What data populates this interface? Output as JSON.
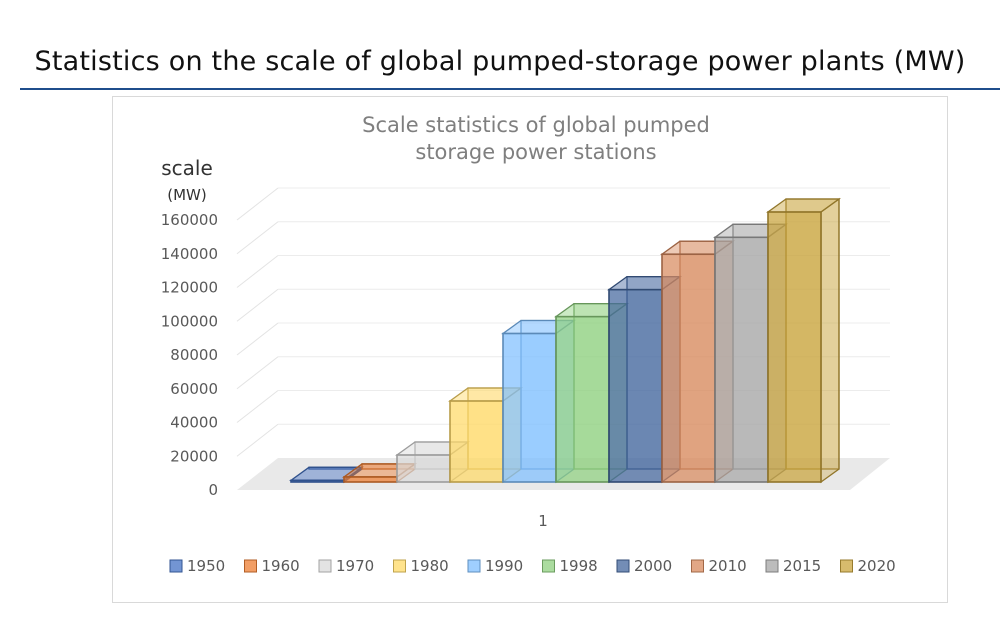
{
  "header": {
    "title": "Statistics on the scale of global pumped-storage power plants (MW)"
  },
  "chart_data": {
    "type": "bar",
    "title": "Scale statistics of global pumped storage power stations",
    "title_lines": [
      "Scale statistics of global pumped",
      "storage power stations"
    ],
    "ylabel": "scale",
    "yunit": "(MW)",
    "categories": [
      "1"
    ],
    "ylim": [
      0,
      160000
    ],
    "yticks": [
      0,
      20000,
      40000,
      60000,
      80000,
      100000,
      120000,
      140000,
      160000
    ],
    "grid": true,
    "legend_position": "bottom",
    "series": [
      {
        "name": "1950",
        "values": [
          1000
        ],
        "color": "#4472c4"
      },
      {
        "name": "1960",
        "values": [
          3000
        ],
        "color": "#ed7d31"
      },
      {
        "name": "1970",
        "values": [
          16000
        ],
        "color": "#d9d9d9"
      },
      {
        "name": "1980",
        "values": [
          48000
        ],
        "color": "#ffd966"
      },
      {
        "name": "1990",
        "values": [
          88000
        ],
        "color": "#7fbfff"
      },
      {
        "name": "1998",
        "values": [
          98000
        ],
        "color": "#8fd07f"
      },
      {
        "name": "2000",
        "values": [
          114000
        ],
        "color": "#44679e"
      },
      {
        "name": "2010",
        "values": [
          135000
        ],
        "color": "#d88a5e"
      },
      {
        "name": "2015",
        "values": [
          145000
        ],
        "color": "#a6a6a6"
      },
      {
        "name": "2020",
        "values": [
          160000
        ],
        "color": "#c9a43c"
      }
    ]
  }
}
